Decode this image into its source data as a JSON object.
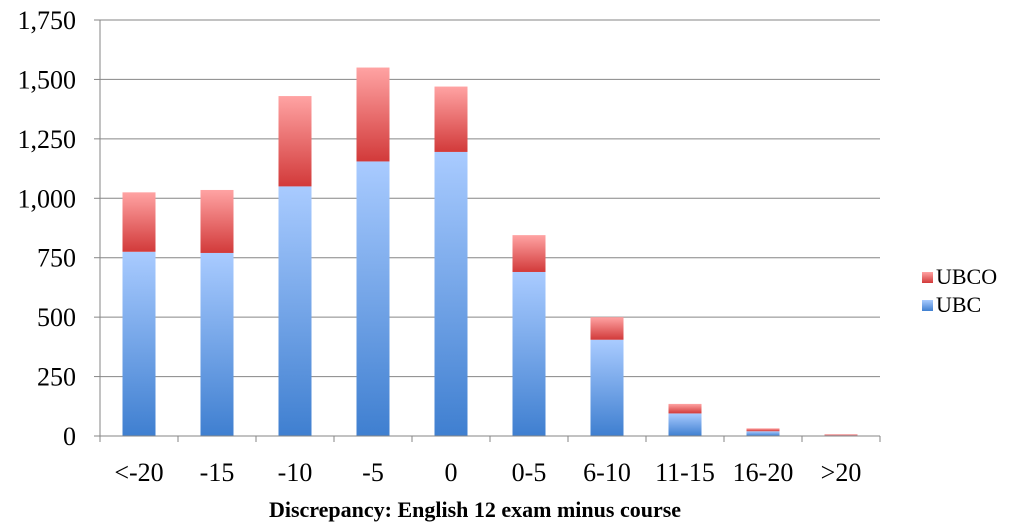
{
  "chart_data": {
    "type": "bar",
    "stacked": true,
    "title": "",
    "xlabel": "Discrepancy: English 12 exam minus course",
    "ylabel": "",
    "categories": [
      "<-20",
      "-15",
      "-10",
      "-5",
      "0",
      "0-5",
      "6-10",
      "11-15",
      "16-20",
      ">20"
    ],
    "series": [
      {
        "name": "UBC",
        "color": "#5b9bd5",
        "values": [
          775,
          770,
          1050,
          1155,
          1195,
          690,
          405,
          95,
          20,
          3
        ]
      },
      {
        "name": "UBCO",
        "color": "#e05a5a",
        "values": [
          250,
          265,
          380,
          395,
          275,
          155,
          95,
          40,
          12,
          4
        ]
      }
    ],
    "ylim": [
      0,
      1750
    ],
    "yticks": [
      "0",
      "250",
      "500",
      "750",
      "1,000",
      "1,250",
      "1,500",
      "1,750"
    ],
    "ytick_values": [
      0,
      250,
      500,
      750,
      1000,
      1250,
      1500,
      1750
    ],
    "grid": true,
    "legend": {
      "position": "right",
      "entries": [
        "UBCO",
        "UBC"
      ]
    }
  }
}
